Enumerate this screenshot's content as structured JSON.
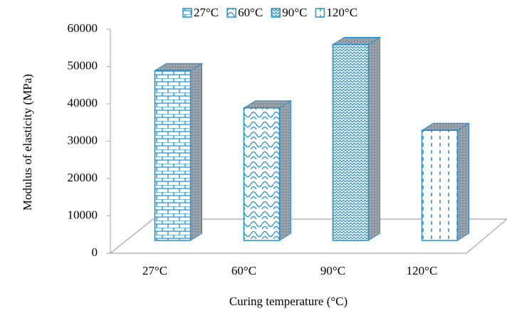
{
  "chart_data": {
    "type": "bar3d",
    "categories": [
      "27°C",
      "60°C",
      "90°C",
      "120°C"
    ],
    "values": [
      47000,
      37000,
      54000,
      31000
    ],
    "color": "#1e8fd6",
    "ylim": [
      0,
      60000
    ],
    "yticks": [
      0,
      10000,
      20000,
      30000,
      40000,
      50000,
      60000
    ],
    "x_label": "Curing temperature (°C)",
    "y_label": "Modulus of elasticity (MPa)",
    "legend": "top"
  }
}
